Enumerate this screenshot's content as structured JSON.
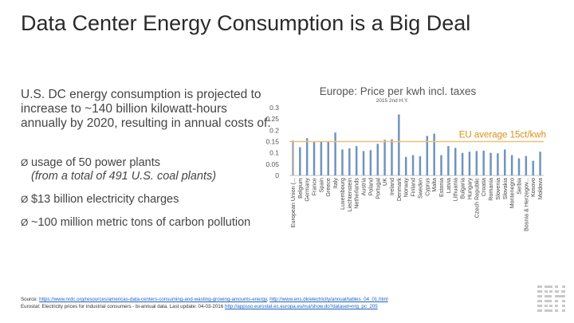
{
  "slide": {
    "title": "Data Center Energy Consumption is a Big Deal",
    "intro": "U.S. DC energy consumption is projected to increase to ~140 billion kilowatt-hours annually by 2020, resulting in annual costs of:",
    "bullets": [
      {
        "text": "usage of 50 power plants",
        "sub": "(from a total of 491 U.S. coal plants)"
      },
      {
        "text": "$13 billion electricity charges",
        "sub": ""
      },
      {
        "text": "~100 million metric tons of carbon pollution",
        "sub": ""
      }
    ],
    "bullet_glyph": "Ø",
    "source": {
      "line1_prefix": "Source:",
      "line1_link1": "https://www.nrdc.org/resources/americas-data-centers-consuming-and-wasting-growing-amounts-energy",
      "line1_sep": ", ",
      "line1_link2": "http://www.ens.dk/electricity/annual/tables_04_01.html",
      "line2_prefix": "Eurostat: Electricity prices for industrial consumers - bi-annual data. Last update: 04-03-2016",
      "line2_link": "http://appsso.eurostat.ec.europa.eu/nui/show.do?dataset=nrg_pc_205"
    },
    "logo": {
      "name": "IBM",
      "color": "#c8c8c8"
    }
  },
  "chart_data": {
    "type": "bar",
    "title": "Europe: Price per kwh incl. taxes",
    "subtitle": "2015 2nd H.Y.",
    "ylim": [
      0,
      0.3
    ],
    "yticks": [
      0,
      0.05,
      0.1,
      0.15,
      0.2,
      0.25,
      0.3
    ],
    "ytick_labels": [
      "0",
      "0.05",
      "0.1",
      "0.15",
      "0.2",
      "0.25",
      "0.3"
    ],
    "categories": [
      "European Union (...",
      "Belgium",
      "Germany",
      "France",
      "Spain",
      "Greece",
      "Italy",
      "Luxembourg",
      "Liechtenstein",
      "Netherlands",
      "Austria",
      "Poland",
      "Portugal",
      "UK",
      "Ireland",
      "Denmark",
      "Norway",
      "Finland",
      "Sweden",
      "Cyprus",
      "Malta",
      "Estonia",
      "Latvia",
      "Lithuania",
      "Bulgaria",
      "Hungary",
      "Czech Republic",
      "Croatia",
      "Romania",
      "Slovenia",
      "Slovakia",
      "Montenegro",
      "Serbia",
      "Bosnia & Herzegov...",
      "Kosovo",
      "Moldova"
    ],
    "values": [
      0.155,
      0.125,
      0.165,
      0.148,
      0.15,
      0.148,
      0.19,
      0.115,
      0.12,
      0.13,
      0.108,
      0.112,
      0.14,
      0.158,
      0.16,
      0.27,
      0.082,
      0.09,
      0.085,
      0.175,
      0.185,
      0.09,
      0.13,
      0.122,
      0.1,
      0.105,
      0.108,
      0.11,
      0.1,
      0.098,
      0.115,
      0.09,
      0.076,
      0.086,
      0.065,
      0.105
    ],
    "reference_line": {
      "value": 0.15,
      "label": "EU average 15ct/kwh"
    },
    "colors": {
      "bar": "#6f94bf",
      "first_bar": "#a7a7a7",
      "reference": "#f0c078",
      "annotation": "#d89018",
      "title": "#555555",
      "axis": "#888888"
    },
    "grid": false,
    "legend": "none"
  }
}
